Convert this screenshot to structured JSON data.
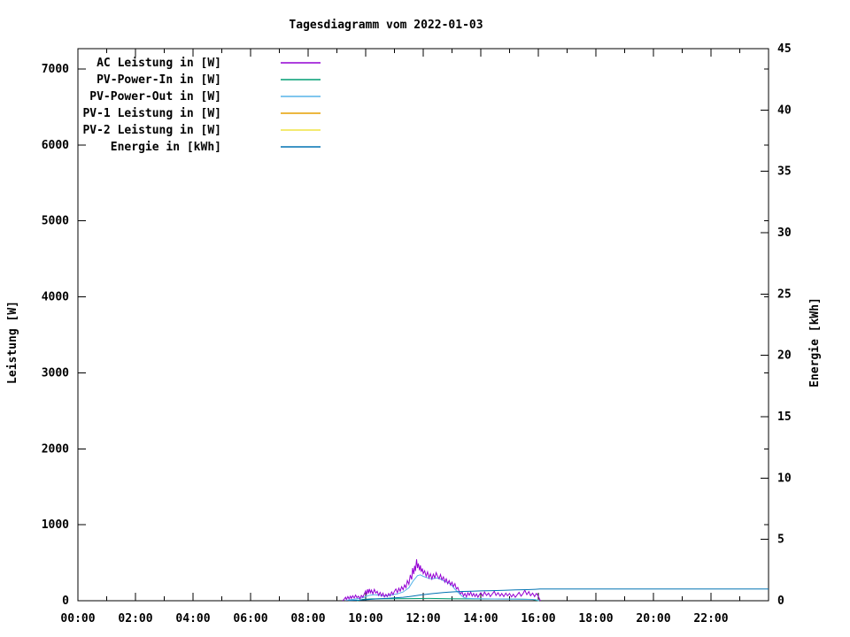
{
  "title": "Tagesdiagramm vom 2022-01-03",
  "chart_data": {
    "type": "line",
    "title": "Tagesdiagramm vom 2022-01-03",
    "grid": false,
    "legend_position": "top-left-inside",
    "x": {
      "min": 0,
      "max": 24,
      "unit": "time",
      "major_tick_hours": 2,
      "minor_tick_hours": 1,
      "tick_labels": [
        "00:00",
        "02:00",
        "04:00",
        "06:00",
        "08:00",
        "10:00",
        "12:00",
        "14:00",
        "16:00",
        "18:00",
        "20:00",
        "22:00"
      ]
    },
    "y_left": {
      "label": "Leistung [W]",
      "min": 0,
      "max": 7268,
      "ticks": [
        0,
        1000,
        2000,
        3000,
        4000,
        5000,
        6000,
        7000
      ]
    },
    "y_right": {
      "label": "Energie [kWh]",
      "min": 0,
      "max": 45,
      "ticks": [
        0,
        5,
        10,
        15,
        20,
        25,
        30,
        35,
        40,
        45
      ]
    },
    "series": [
      {
        "name": "AC Leistung in [W]",
        "color": "#9400D3",
        "axis": "left",
        "points": [
          [
            9.2,
            0
          ],
          [
            9.25,
            20
          ],
          [
            9.3,
            45
          ],
          [
            9.33,
            15
          ],
          [
            9.38,
            55
          ],
          [
            9.42,
            25
          ],
          [
            9.47,
            60
          ],
          [
            9.5,
            30
          ],
          [
            9.55,
            65
          ],
          [
            9.6,
            35
          ],
          [
            9.65,
            75
          ],
          [
            9.7,
            40
          ],
          [
            9.75,
            60
          ],
          [
            9.8,
            25
          ],
          [
            9.85,
            70
          ],
          [
            9.9,
            45
          ],
          [
            9.95,
            90
          ],
          [
            10.0,
            130
          ],
          [
            10.03,
            80
          ],
          [
            10.07,
            150
          ],
          [
            10.1,
            95
          ],
          [
            10.13,
            155
          ],
          [
            10.17,
            105
          ],
          [
            10.2,
            140
          ],
          [
            10.25,
            90
          ],
          [
            10.3,
            150
          ],
          [
            10.35,
            100
          ],
          [
            10.4,
            125
          ],
          [
            10.45,
            70
          ],
          [
            10.5,
            110
          ],
          [
            10.55,
            60
          ],
          [
            10.6,
            100
          ],
          [
            10.65,
            50
          ],
          [
            10.7,
            85
          ],
          [
            10.75,
            55
          ],
          [
            10.8,
            95
          ],
          [
            10.85,
            65
          ],
          [
            10.9,
            115
          ],
          [
            10.95,
            80
          ],
          [
            11.0,
            125
          ],
          [
            11.05,
            155
          ],
          [
            11.1,
            105
          ],
          [
            11.15,
            165
          ],
          [
            11.2,
            125
          ],
          [
            11.25,
            185
          ],
          [
            11.3,
            145
          ],
          [
            11.35,
            210
          ],
          [
            11.4,
            170
          ],
          [
            11.45,
            265
          ],
          [
            11.5,
            215
          ],
          [
            11.55,
            340
          ],
          [
            11.6,
            280
          ],
          [
            11.63,
            430
          ],
          [
            11.67,
            350
          ],
          [
            11.7,
            460
          ],
          [
            11.73,
            390
          ],
          [
            11.77,
            545
          ],
          [
            11.8,
            430
          ],
          [
            11.83,
            490
          ],
          [
            11.87,
            400
          ],
          [
            11.9,
            465
          ],
          [
            11.93,
            380
          ],
          [
            11.97,
            425
          ],
          [
            12.0,
            355
          ],
          [
            12.05,
            395
          ],
          [
            12.1,
            320
          ],
          [
            12.15,
            380
          ],
          [
            12.2,
            300
          ],
          [
            12.25,
            355
          ],
          [
            12.3,
            285
          ],
          [
            12.35,
            350
          ],
          [
            12.4,
            300
          ],
          [
            12.45,
            370
          ],
          [
            12.5,
            320
          ],
          [
            12.55,
            290
          ],
          [
            12.6,
            345
          ],
          [
            12.65,
            275
          ],
          [
            12.7,
            315
          ],
          [
            12.75,
            245
          ],
          [
            12.8,
            290
          ],
          [
            12.85,
            225
          ],
          [
            12.9,
            265
          ],
          [
            12.95,
            205
          ],
          [
            13.0,
            245
          ],
          [
            13.05,
            185
          ],
          [
            13.1,
            225
          ],
          [
            13.15,
            155
          ],
          [
            13.2,
            175
          ],
          [
            13.25,
            120
          ],
          [
            13.3,
            90
          ],
          [
            13.35,
            115
          ],
          [
            13.4,
            60
          ],
          [
            13.45,
            95
          ],
          [
            13.5,
            50
          ],
          [
            13.55,
            105
          ],
          [
            13.6,
            70
          ],
          [
            13.65,
            115
          ],
          [
            13.7,
            60
          ],
          [
            13.75,
            95
          ],
          [
            13.8,
            55
          ],
          [
            13.85,
            90
          ],
          [
            13.9,
            45
          ],
          [
            13.95,
            80
          ],
          [
            14.0,
            105
          ],
          [
            14.07,
            60
          ],
          [
            14.13,
            115
          ],
          [
            14.2,
            70
          ],
          [
            14.27,
            100
          ],
          [
            14.33,
            55
          ],
          [
            14.4,
            90
          ],
          [
            14.47,
            125
          ],
          [
            14.53,
            70
          ],
          [
            14.6,
            105
          ],
          [
            14.67,
            60
          ],
          [
            14.73,
            95
          ],
          [
            14.8,
            55
          ],
          [
            14.87,
            100
          ],
          [
            14.93,
            65
          ],
          [
            15.0,
            95
          ],
          [
            15.07,
            50
          ],
          [
            15.13,
            85
          ],
          [
            15.2,
            45
          ],
          [
            15.27,
            80
          ],
          [
            15.33,
            110
          ],
          [
            15.4,
            60
          ],
          [
            15.47,
            95
          ],
          [
            15.53,
            140
          ],
          [
            15.6,
            80
          ],
          [
            15.67,
            120
          ],
          [
            15.73,
            65
          ],
          [
            15.8,
            100
          ],
          [
            15.87,
            55
          ],
          [
            15.93,
            95
          ],
          [
            16.0,
            60
          ],
          [
            16.05,
            15
          ],
          [
            16.08,
            0
          ]
        ]
      },
      {
        "name": "PV-Power-In in [W]",
        "color": "#009E73",
        "axis": "left",
        "points": [
          [
            9.7,
            0
          ],
          [
            9.9,
            18
          ],
          [
            10.2,
            24
          ],
          [
            10.8,
            26
          ],
          [
            11.5,
            28
          ],
          [
            12.2,
            30
          ],
          [
            12.9,
            27
          ],
          [
            13.6,
            24
          ],
          [
            14.4,
            23
          ],
          [
            15.2,
            22
          ],
          [
            15.8,
            18
          ],
          [
            16.0,
            0
          ]
        ]
      },
      {
        "name": "PV-Power-Out in [W]",
        "color": "#56B4E9",
        "axis": "left",
        "points": [
          [
            9.3,
            5
          ],
          [
            9.6,
            20
          ],
          [
            9.9,
            40
          ],
          [
            10.1,
            70
          ],
          [
            10.3,
            80
          ],
          [
            10.5,
            70
          ],
          [
            10.7,
            60
          ],
          [
            10.9,
            75
          ],
          [
            11.1,
            90
          ],
          [
            11.3,
            115
          ],
          [
            11.5,
            170
          ],
          [
            11.65,
            260
          ],
          [
            11.8,
            330
          ],
          [
            11.9,
            340
          ],
          [
            12.0,
            320
          ],
          [
            12.15,
            300
          ],
          [
            12.3,
            285
          ],
          [
            12.45,
            300
          ],
          [
            12.6,
            285
          ],
          [
            12.75,
            255
          ],
          [
            12.9,
            230
          ],
          [
            13.0,
            200
          ],
          [
            13.1,
            150
          ],
          [
            13.2,
            115
          ],
          [
            13.3,
            75
          ],
          [
            13.4,
            45
          ],
          [
            13.5,
            32
          ],
          [
            13.8,
            28
          ],
          [
            14.2,
            25
          ],
          [
            14.8,
            22
          ],
          [
            15.4,
            20
          ],
          [
            15.9,
            15
          ],
          [
            16.03,
            0
          ]
        ]
      },
      {
        "name": "PV-1 Leistung in [W]",
        "color": "#E69F00",
        "axis": "left",
        "points": []
      },
      {
        "name": "PV-2 Leistung in [W]",
        "color": "#F0E442",
        "axis": "left",
        "points": []
      },
      {
        "name": "Energie in [kWh]",
        "color": "#0072B2",
        "axis": "right",
        "points": [
          [
            9.4,
            0.02
          ],
          [
            9.8,
            0.05
          ],
          [
            10.1,
            0.1
          ],
          [
            10.4,
            0.15
          ],
          [
            10.7,
            0.19
          ],
          [
            11.0,
            0.23
          ],
          [
            11.3,
            0.28
          ],
          [
            11.5,
            0.33
          ],
          [
            11.7,
            0.4
          ],
          [
            11.9,
            0.47
          ],
          [
            12.1,
            0.53
          ],
          [
            12.3,
            0.58
          ],
          [
            12.5,
            0.62
          ],
          [
            12.7,
            0.66
          ],
          [
            12.9,
            0.7
          ],
          [
            13.1,
            0.73
          ],
          [
            13.4,
            0.76
          ],
          [
            13.7,
            0.78
          ],
          [
            14.0,
            0.8
          ],
          [
            14.4,
            0.82
          ],
          [
            14.8,
            0.85
          ],
          [
            15.2,
            0.88
          ],
          [
            15.6,
            0.9
          ],
          [
            15.9,
            0.93
          ],
          [
            16.05,
            0.95
          ],
          [
            24.0,
            0.95
          ]
        ]
      }
    ]
  }
}
